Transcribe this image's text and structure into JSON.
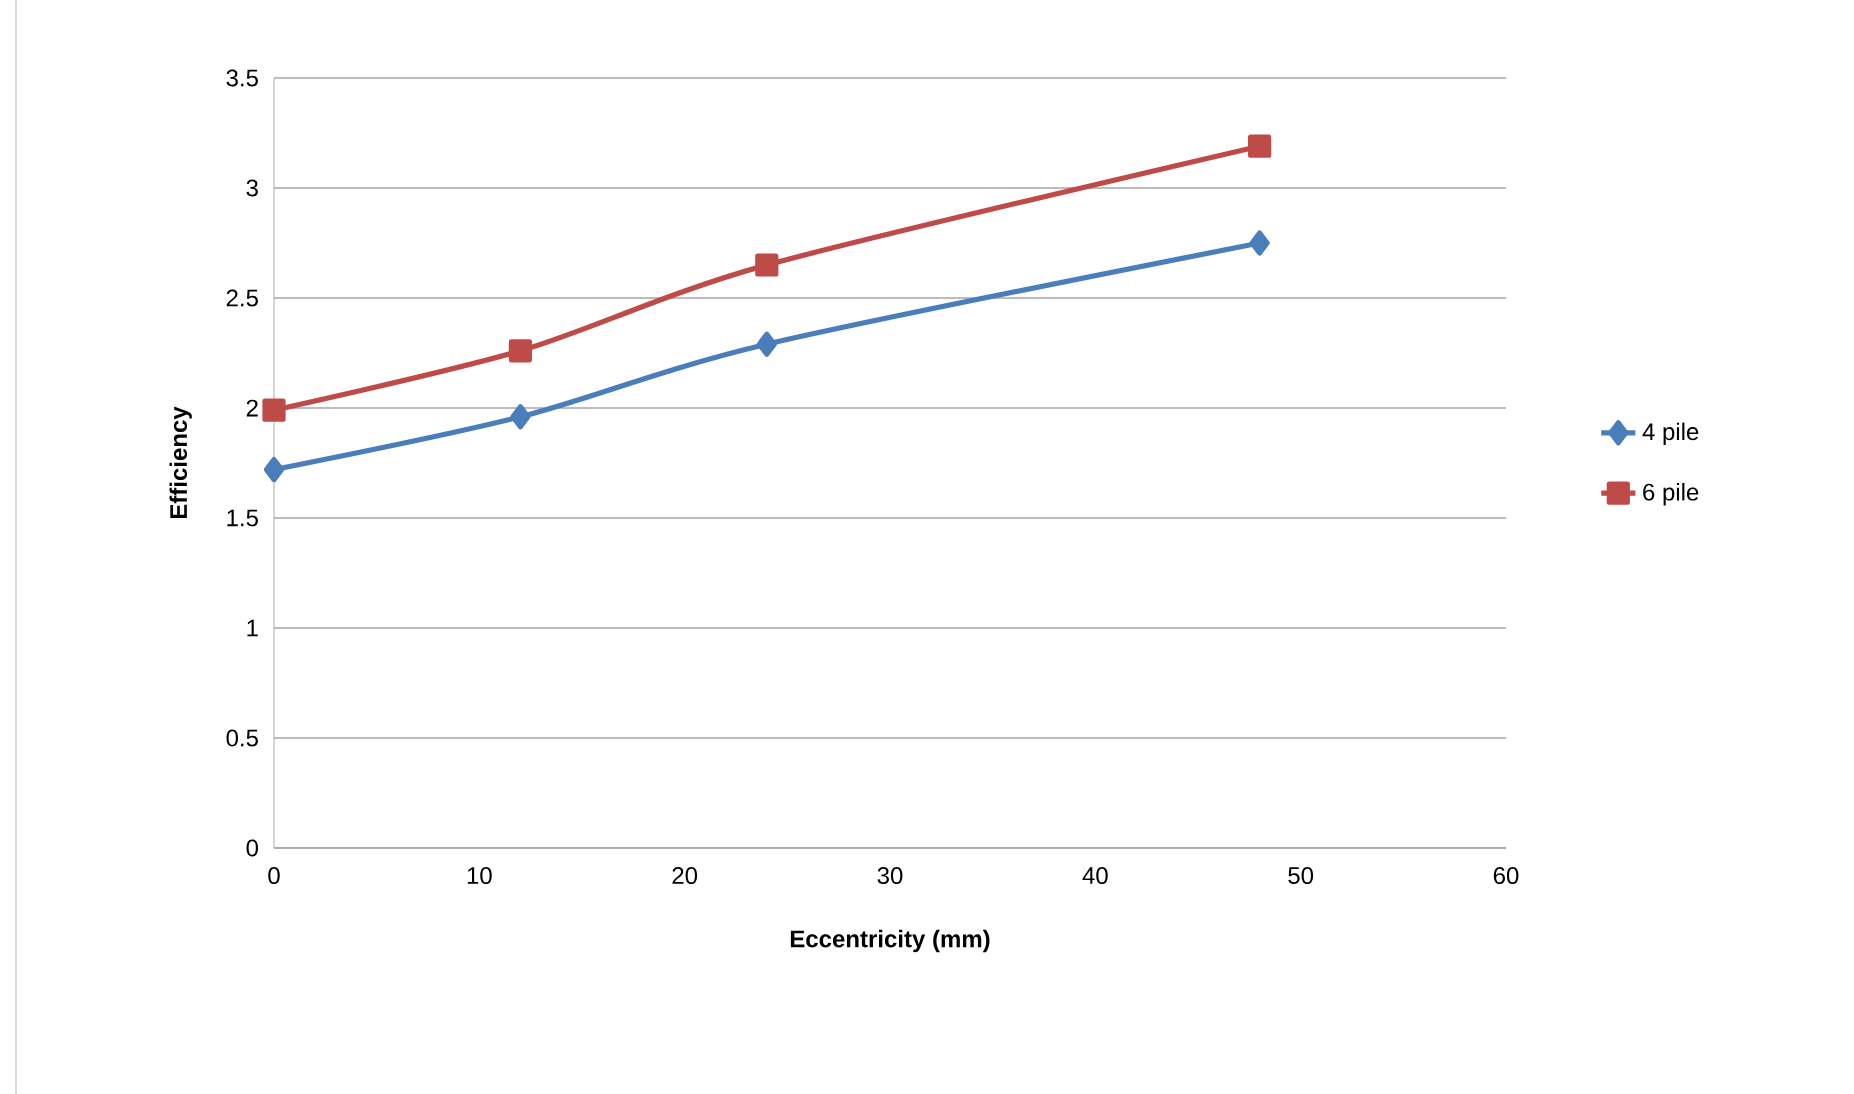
{
  "chart_data": {
    "type": "line",
    "xlabel": "Eccentricity (mm)",
    "ylabel": "Efficiency",
    "xlim": [
      0,
      60
    ],
    "xticks": [
      0,
      10,
      20,
      30,
      40,
      50,
      60
    ],
    "ylim": [
      0,
      3.5
    ],
    "yticks": [
      0,
      0.5,
      1,
      1.5,
      2,
      2.5,
      3,
      3.5
    ],
    "grid": "y",
    "legend": "right",
    "line_style": "solid",
    "series": [
      {
        "name": "4 pile",
        "color": "#4a7ebb",
        "marker": "diamond",
        "x": [
          0,
          12,
          24,
          48
        ],
        "values": [
          1.72,
          1.96,
          2.29,
          2.75
        ]
      },
      {
        "name": "6 pile",
        "color": "#be4b48",
        "marker": "square",
        "x": [
          0,
          12,
          24,
          48
        ],
        "values": [
          1.99,
          2.26,
          2.65,
          3.19
        ]
      }
    ]
  }
}
